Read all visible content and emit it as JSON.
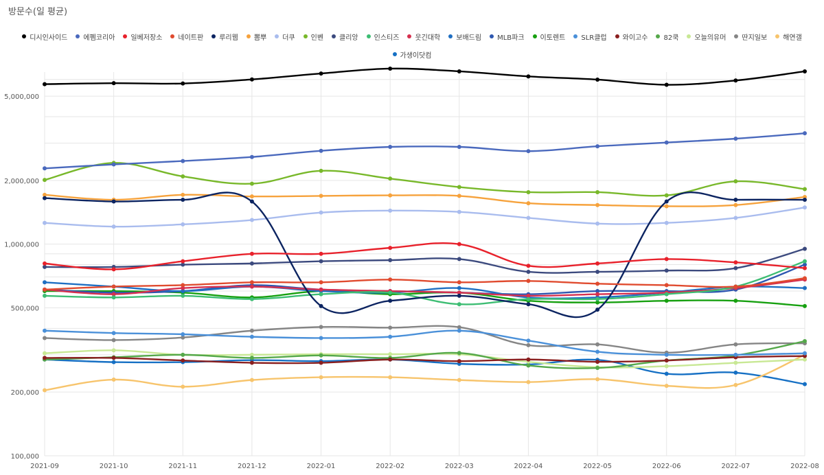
{
  "chart_data": {
    "type": "line",
    "title": "방문수(일 평균)",
    "xlabel": "",
    "ylabel": "",
    "y_scale": "log",
    "ylim": [
      100000,
      6500000
    ],
    "y_ticks": [
      100000,
      200000,
      500000,
      1000000,
      2000000,
      5000000
    ],
    "y_tick_labels": [
      "100,000",
      "200,000",
      "500,000",
      "1,000,000",
      "2,000,000",
      "5,000,000"
    ],
    "grid": true,
    "legend_position": "top",
    "categories": [
      "2021-09",
      "2021-10",
      "2021-11",
      "2021-12",
      "2022-01",
      "2022-02",
      "2022-03",
      "2022-04",
      "2022-05",
      "2022-06",
      "2022-07",
      "2022-08"
    ],
    "series": [
      {
        "name": "디시인사이드",
        "color": "#000000",
        "values": [
          5700000,
          5760000,
          5740000,
          6000000,
          6400000,
          6750000,
          6550000,
          6200000,
          5990000,
          5660000,
          5930000,
          6550000
        ]
      },
      {
        "name": "에펨코리아",
        "color": "#4a69bd",
        "values": [
          2280000,
          2380000,
          2470000,
          2580000,
          2760000,
          2880000,
          2880000,
          2750000,
          2900000,
          3020000,
          3150000,
          3340000
        ]
      },
      {
        "name": "일베저장소",
        "color": "#e8212b",
        "values": [
          810000,
          760000,
          830000,
          900000,
          900000,
          960000,
          1000000,
          790000,
          810000,
          850000,
          820000,
          770000
        ]
      },
      {
        "name": "네이트판",
        "color": "#e04b2f",
        "values": [
          610000,
          630000,
          640000,
          660000,
          660000,
          680000,
          660000,
          670000,
          650000,
          640000,
          630000,
          690000
        ]
      },
      {
        "name": "루리웹",
        "color": "#0c2461",
        "values": [
          1650000,
          1590000,
          1620000,
          1590000,
          510000,
          540000,
          570000,
          520000,
          490000,
          1590000,
          1620000,
          1620000
        ]
      },
      {
        "name": "뽐뿌",
        "color": "#f6a23c",
        "values": [
          1710000,
          1620000,
          1710000,
          1680000,
          1690000,
          1700000,
          1690000,
          1560000,
          1530000,
          1510000,
          1530000,
          1670000
        ]
      },
      {
        "name": "더쿠",
        "color": "#a9bcee",
        "values": [
          1260000,
          1210000,
          1240000,
          1300000,
          1410000,
          1440000,
          1420000,
          1330000,
          1250000,
          1260000,
          1330000,
          1490000
        ]
      },
      {
        "name": "인벤",
        "color": "#78b82a",
        "values": [
          2010000,
          2420000,
          2090000,
          1930000,
          2220000,
          2040000,
          1860000,
          1760000,
          1760000,
          1700000,
          1980000,
          1820000
        ]
      },
      {
        "name": "클리앙",
        "color": "#3c4a7e",
        "values": [
          780000,
          780000,
          800000,
          810000,
          830000,
          840000,
          850000,
          740000,
          740000,
          750000,
          770000,
          950000
        ]
      },
      {
        "name": "인스티즈",
        "color": "#3dbd73",
        "values": [
          570000,
          560000,
          570000,
          550000,
          580000,
          590000,
          520000,
          550000,
          550000,
          580000,
          630000,
          830000
        ]
      },
      {
        "name": "웃긴대학",
        "color": "#d6304f",
        "values": [
          610000,
          580000,
          620000,
          630000,
          610000,
          600000,
          590000,
          570000,
          580000,
          590000,
          620000,
          680000
        ]
      },
      {
        "name": "보배드림",
        "color": "#1f6fc2",
        "values": [
          660000,
          630000,
          600000,
          630000,
          600000,
          590000,
          620000,
          560000,
          560000,
          590000,
          630000,
          620000
        ]
      },
      {
        "name": "MLB파크",
        "color": "#2e57b0",
        "values": [
          610000,
          590000,
          600000,
          640000,
          610000,
          600000,
          590000,
          580000,
          600000,
          600000,
          610000,
          800000
        ]
      },
      {
        "name": "이토렌트",
        "color": "#17a010",
        "values": [
          600000,
          600000,
          590000,
          560000,
          600000,
          580000,
          590000,
          540000,
          530000,
          540000,
          540000,
          510000
        ]
      },
      {
        "name": "SLR클럽",
        "color": "#4a90d9",
        "values": [
          390000,
          380000,
          375000,
          365000,
          360000,
          365000,
          390000,
          350000,
          310000,
          300000,
          300000,
          305000
        ]
      },
      {
        "name": "와이고수",
        "color": "#8a1f1f",
        "values": [
          290000,
          290000,
          282000,
          275000,
          275000,
          285000,
          280000,
          285000,
          278000,
          282000,
          292000,
          296000
        ]
      },
      {
        "name": "82쿡",
        "color": "#55a84a",
        "values": [
          285000,
          292000,
          300000,
          290000,
          298000,
          290000,
          306000,
          267000,
          260000,
          282000,
          298000,
          348000
        ]
      },
      {
        "name": "오늘의유머",
        "color": "#c8e894",
        "values": [
          305000,
          315000,
          300000,
          300000,
          302000,
          302000,
          302000,
          278000,
          262000,
          265000,
          275000,
          285000
        ]
      },
      {
        "name": "딴지일보",
        "color": "#858585",
        "values": [
          360000,
          352000,
          362000,
          390000,
          406000,
          403000,
          405000,
          333000,
          336000,
          307000,
          336000,
          340000
        ]
      },
      {
        "name": "해연갤",
        "color": "#f7c46c",
        "values": [
          204000,
          229000,
          212000,
          228000,
          235000,
          235000,
          228000,
          223000,
          230000,
          214000,
          216000,
          300000
        ]
      },
      {
        "name": "가생이닷컴",
        "color": "#1670c4",
        "values": [
          285000,
          277000,
          277000,
          283000,
          280000,
          285000,
          272000,
          270000,
          284000,
          244000,
          247000,
          218000
        ]
      }
    ]
  }
}
